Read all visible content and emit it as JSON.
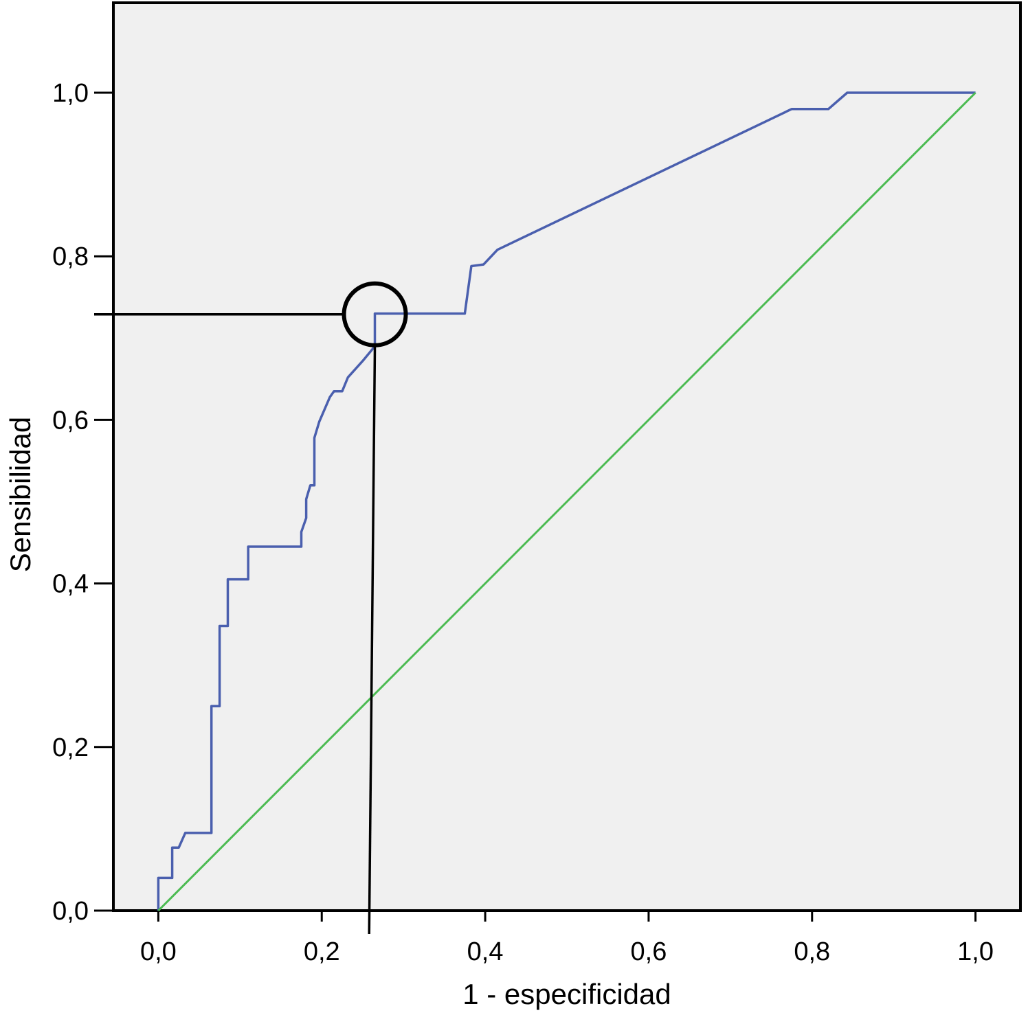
{
  "chart_data": {
    "type": "line",
    "title": "",
    "xlabel": "1 - especificidad",
    "ylabel": "Sensibilidad",
    "xlim": [
      -0.055,
      1.055
    ],
    "ylim": [
      0,
      1.11
    ],
    "grid": false,
    "x_ticks": [
      0,
      0.2,
      0.4,
      0.6,
      0.8,
      1.0
    ],
    "x_tick_labels": [
      "0,0",
      "0,2",
      "0,4",
      "0,6",
      "0,8",
      "1,0"
    ],
    "y_ticks": [
      0,
      0.2,
      0.4,
      0.6,
      0.8,
      1.0
    ],
    "y_tick_labels": [
      "0,0",
      "0,2",
      "0,4",
      "0,6",
      "0,8",
      "1,0"
    ],
    "colors": {
      "plot_background": "#f0f0f0",
      "roc_curve": "#4a5fae",
      "reference_line": "#4cbb52",
      "annotation": "#000000"
    },
    "series": [
      {
        "role": "roc_curve",
        "points": [
          [
            0.0,
            0.0
          ],
          [
            0.0,
            0.04
          ],
          [
            0.017,
            0.04
          ],
          [
            0.017,
            0.077
          ],
          [
            0.025,
            0.077
          ],
          [
            0.033,
            0.095
          ],
          [
            0.065,
            0.095
          ],
          [
            0.065,
            0.25
          ],
          [
            0.075,
            0.25
          ],
          [
            0.075,
            0.348
          ],
          [
            0.085,
            0.348
          ],
          [
            0.085,
            0.405
          ],
          [
            0.11,
            0.405
          ],
          [
            0.11,
            0.445
          ],
          [
            0.175,
            0.445
          ],
          [
            0.175,
            0.463
          ],
          [
            0.181,
            0.48
          ],
          [
            0.181,
            0.503
          ],
          [
            0.186,
            0.52
          ],
          [
            0.191,
            0.52
          ],
          [
            0.191,
            0.578
          ],
          [
            0.197,
            0.598
          ],
          [
            0.21,
            0.628
          ],
          [
            0.215,
            0.635
          ],
          [
            0.225,
            0.635
          ],
          [
            0.232,
            0.652
          ],
          [
            0.25,
            0.672
          ],
          [
            0.265,
            0.69
          ],
          [
            0.265,
            0.73
          ],
          [
            0.375,
            0.73
          ],
          [
            0.383,
            0.788
          ],
          [
            0.398,
            0.79
          ],
          [
            0.415,
            0.808
          ],
          [
            0.775,
            0.98
          ],
          [
            0.82,
            0.98
          ],
          [
            0.843,
            1.0
          ],
          [
            1.0,
            1.0
          ]
        ]
      },
      {
        "role": "reference_line",
        "points": [
          [
            0,
            0
          ],
          [
            1,
            1
          ]
        ]
      }
    ],
    "annotation": {
      "cutoff_point": [
        0.265,
        0.729
      ],
      "vertical_line_x": 0.258
    }
  }
}
